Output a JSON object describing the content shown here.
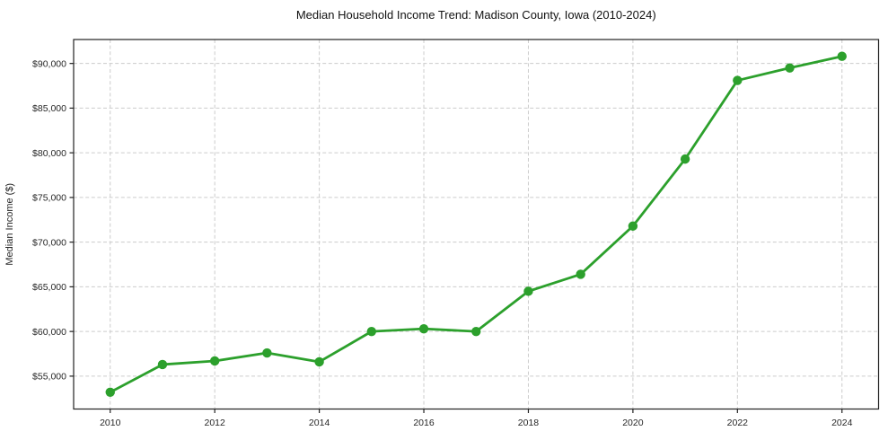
{
  "page": {
    "background": "#ffffff"
  },
  "chart_data": {
    "type": "line",
    "title": "Median Household Income Trend: Madison County, Iowa (2010-2024)",
    "xlabel": "",
    "ylabel": "Median Income ($)",
    "x": [
      2010,
      2011,
      2012,
      2013,
      2014,
      2015,
      2016,
      2017,
      2018,
      2019,
      2020,
      2021,
      2022,
      2023,
      2024
    ],
    "series": [
      {
        "values": [
          53200,
          56300,
          56700,
          57600,
          56600,
          60000,
          60300,
          60000,
          64500,
          66400,
          71800,
          79300,
          88100,
          89500,
          90800
        ],
        "color": "#2ca02c",
        "marker": "circle"
      }
    ],
    "x_ticks": [
      2010,
      2012,
      2014,
      2016,
      2018,
      2020,
      2022,
      2024
    ],
    "x_tick_labels": [
      "2010",
      "2012",
      "2014",
      "2016",
      "2018",
      "2020",
      "2022",
      "2024"
    ],
    "y_ticks": [
      55000,
      60000,
      65000,
      70000,
      75000,
      80000,
      85000,
      90000
    ],
    "y_tick_labels": [
      "$55,000",
      "$60,000",
      "$65,000",
      "$70,000",
      "$75,000",
      "$80,000",
      "$85,000",
      "$90,000"
    ],
    "xlim": [
      2009.3,
      2024.7
    ],
    "ylim": [
      51320,
      92680
    ],
    "grid": true,
    "grid_style": "dashed",
    "grid_color": "#cccccc",
    "spine_color": "#222222",
    "tick_color": "#222222",
    "legend": "none"
  }
}
